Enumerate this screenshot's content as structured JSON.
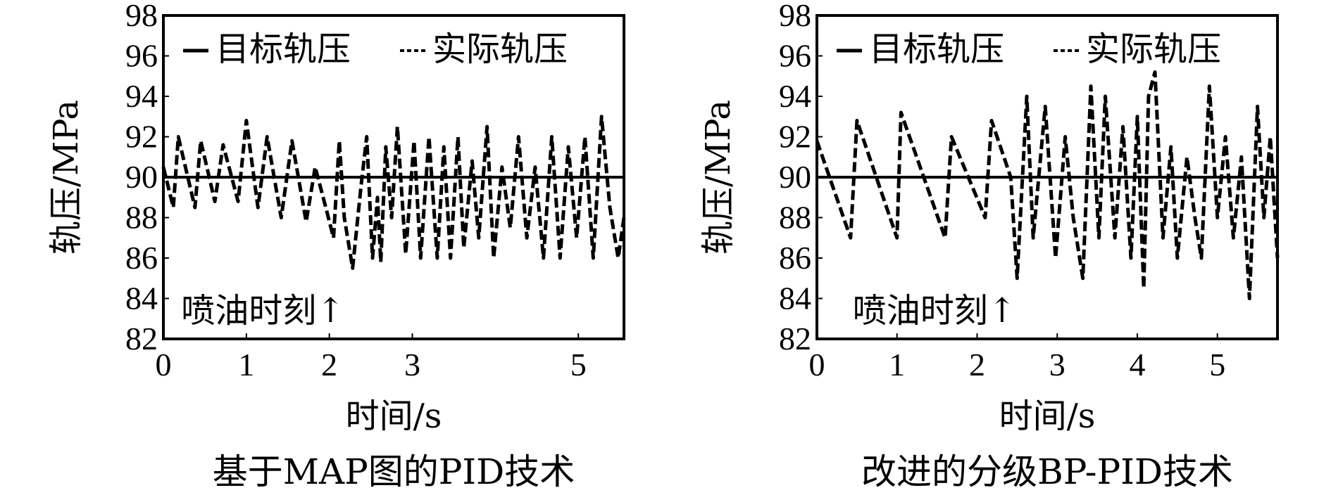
{
  "colors": {
    "line": "#000000",
    "background": "#ffffff"
  },
  "chart_data": [
    {
      "type": "line",
      "caption": "基于MAP图的PID技术",
      "xlabel": "时间/s",
      "ylabel": "轨压/MPa",
      "xlim": [
        0,
        5.55
      ],
      "ylim": [
        82,
        98
      ],
      "xticks": [
        "0",
        "1",
        "2",
        "3",
        "5"
      ],
      "xtick_values": [
        0,
        1,
        2,
        3,
        5
      ],
      "yticks": [
        "82",
        "84",
        "86",
        "88",
        "90",
        "92",
        "94",
        "96",
        "98"
      ],
      "grid": false,
      "legend_position": "top-left",
      "annotation": {
        "text": "喷油时刻↑",
        "x": 2.1
      },
      "series": [
        {
          "name": "目标轨压",
          "style": "solid",
          "x": [
            0,
            5.55
          ],
          "y": [
            90,
            90
          ]
        },
        {
          "name": "实际轨压",
          "style": "dashed",
          "x": [
            0.0,
            0.12,
            0.18,
            0.38,
            0.45,
            0.62,
            0.72,
            0.9,
            1.0,
            1.14,
            1.25,
            1.42,
            1.55,
            1.72,
            1.83,
            1.97,
            2.05,
            2.12,
            2.18,
            2.24,
            2.28,
            2.38,
            2.45,
            2.52,
            2.58,
            2.62,
            2.68,
            2.75,
            2.82,
            2.92,
            3.02,
            3.1,
            3.2,
            3.3,
            3.38,
            3.46,
            3.55,
            3.62,
            3.72,
            3.8,
            3.9,
            3.98,
            4.08,
            4.18,
            4.28,
            4.38,
            4.48,
            4.58,
            4.68,
            4.78,
            4.88,
            4.98,
            5.08,
            5.18,
            5.28,
            5.38,
            5.48,
            5.55
          ],
          "y": [
            90.5,
            88.5,
            92.0,
            88.5,
            91.8,
            88.8,
            91.6,
            88.8,
            92.8,
            88.5,
            92.0,
            88.0,
            91.8,
            87.8,
            90.5,
            88.3,
            87.0,
            91.8,
            88.0,
            86.5,
            85.5,
            89.5,
            92.0,
            86.0,
            89.0,
            85.8,
            91.5,
            88.0,
            92.5,
            86.2,
            91.8,
            86.0,
            92.0,
            86.0,
            91.5,
            86.0,
            92.0,
            86.5,
            90.8,
            87.0,
            92.5,
            86.0,
            90.5,
            87.5,
            92.0,
            87.0,
            90.5,
            86.0,
            92.0,
            86.0,
            91.5,
            87.0,
            92.0,
            86.0,
            93.0,
            88.5,
            86.0,
            88.0
          ]
        }
      ]
    },
    {
      "type": "line",
      "caption": "改进的分级BP-PID技术",
      "xlabel": "时间/s",
      "ylabel": "轨压/MPa",
      "xlim": [
        0,
        5.75
      ],
      "ylim": [
        82,
        98
      ],
      "xticks": [
        "0",
        "1",
        "2",
        "3",
        "4",
        "5"
      ],
      "xtick_values": [
        0,
        1,
        2,
        3,
        4,
        5
      ],
      "yticks": [
        "82",
        "84",
        "86",
        "88",
        "90",
        "92",
        "94",
        "96",
        "98"
      ],
      "grid": false,
      "legend_position": "top-left",
      "annotation": {
        "text": "喷油时刻↑",
        "x": 2.4
      },
      "series": [
        {
          "name": "目标轨压",
          "style": "solid",
          "x": [
            0,
            5.75
          ],
          "y": [
            90,
            90
          ]
        },
        {
          "name": "实际轨压",
          "style": "dashed",
          "x": [
            0.0,
            0.42,
            0.5,
            1.0,
            1.05,
            1.6,
            1.68,
            2.1,
            2.18,
            2.42,
            2.5,
            2.62,
            2.7,
            2.85,
            2.98,
            3.1,
            3.2,
            3.32,
            3.42,
            3.52,
            3.6,
            3.72,
            3.82,
            3.92,
            4.0,
            4.08,
            4.14,
            4.22,
            4.32,
            4.42,
            4.5,
            4.62,
            4.72,
            4.8,
            4.9,
            5.0,
            5.1,
            5.2,
            5.3,
            5.4,
            5.5,
            5.58,
            5.66,
            5.75
          ],
          "y": [
            91.8,
            87.0,
            92.8,
            87.0,
            93.2,
            87.0,
            92.0,
            88.0,
            92.8,
            90.0,
            85.0,
            94.0,
            87.0,
            93.5,
            86.0,
            92.0,
            88.0,
            85.0,
            94.5,
            87.0,
            94.0,
            87.0,
            92.5,
            86.0,
            93.0,
            84.5,
            94.0,
            95.2,
            87.0,
            91.5,
            86.0,
            91.0,
            88.0,
            86.0,
            94.5,
            88.0,
            92.0,
            87.0,
            91.0,
            84.0,
            93.5,
            88.0,
            92.0,
            86.0
          ]
        }
      ]
    }
  ]
}
